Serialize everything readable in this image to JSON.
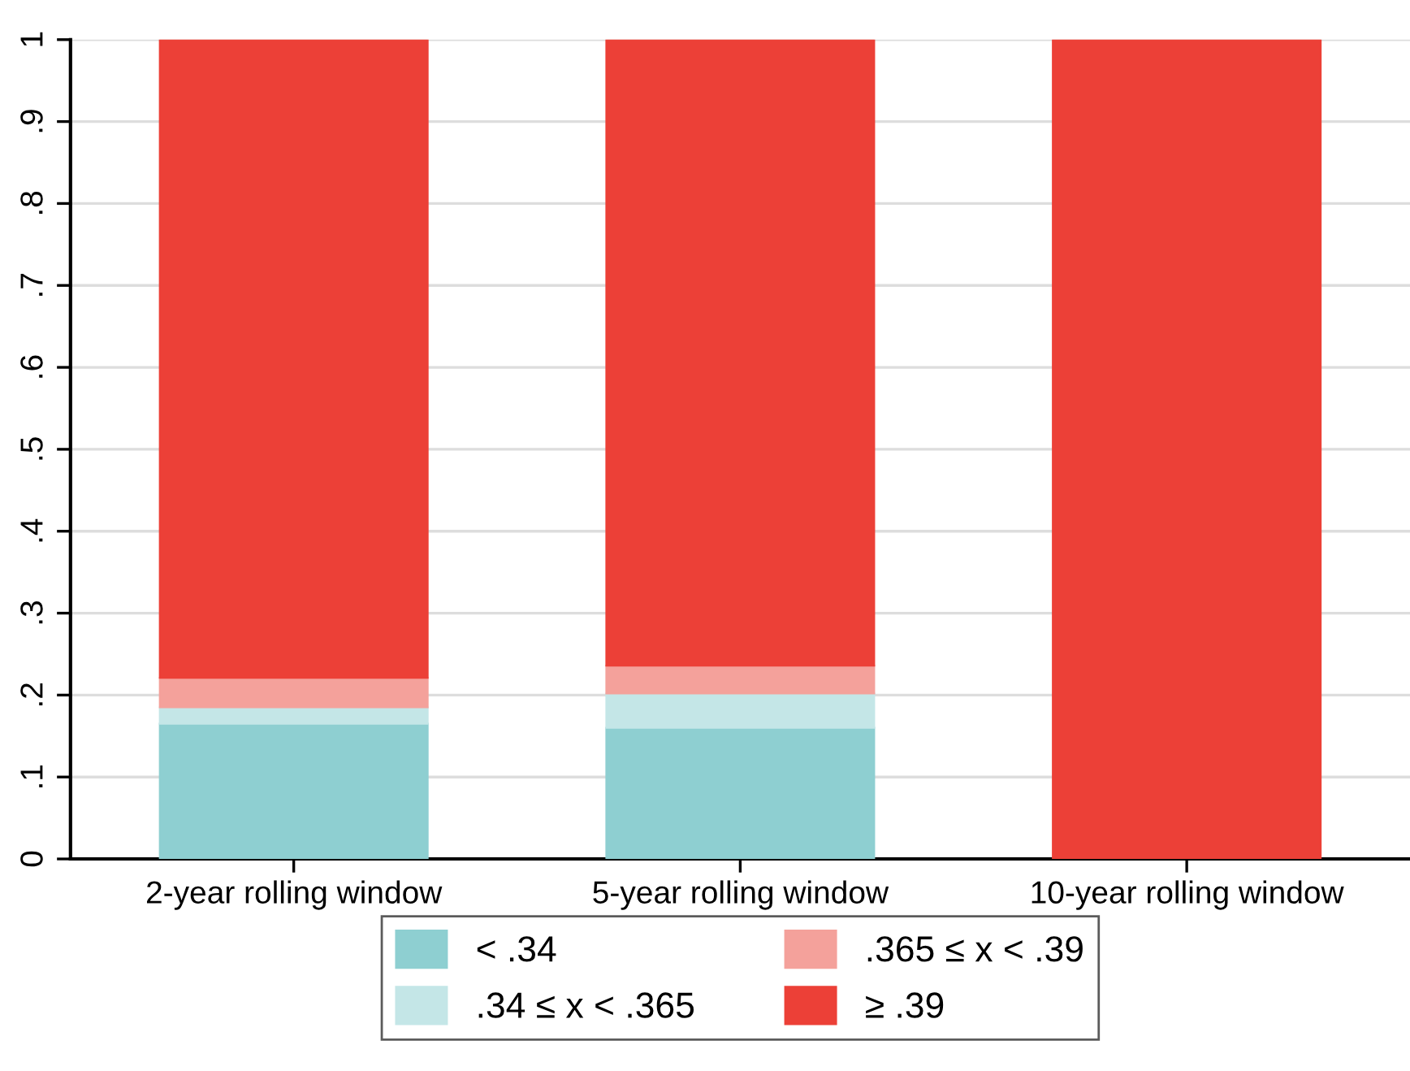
{
  "chart_data": {
    "type": "bar",
    "stacked": true,
    "categories": [
      "2-year rolling window",
      "5-year rolling window",
      "10-year rolling window"
    ],
    "series": [
      {
        "name": "< .34",
        "color": "#8ecfd1",
        "values": [
          0.165,
          0.16,
          0
        ]
      },
      {
        "name": ".34 ≤ x < .365",
        "color": "#c4e6e7",
        "values": [
          0.02,
          0.042,
          0
        ]
      },
      {
        "name": ".365 ≤ x < .39",
        "color": "#f4a19b",
        "values": [
          0.036,
          0.034,
          0
        ]
      },
      {
        "name": "≥ .39",
        "color": "#ec4037",
        "values": [
          0.779,
          0.764,
          1
        ]
      }
    ],
    "ylim": [
      0,
      1
    ],
    "yticks": [
      0,
      {
        "value": 0.1,
        "label": ".1"
      },
      {
        "value": 0.2,
        "label": ".2"
      },
      {
        "value": 0.3,
        "label": ".3"
      },
      {
        "value": 0.4,
        "label": ".4"
      },
      {
        "value": 0.5,
        "label": ".5"
      },
      {
        "value": 0.6,
        "label": ".6"
      },
      {
        "value": 0.7,
        "label": ".7"
      },
      {
        "value": 0.8,
        "label": ".8"
      },
      {
        "value": 0.9,
        "label": ".9"
      },
      1
    ],
    "grid": "y",
    "legend": "bottom"
  }
}
